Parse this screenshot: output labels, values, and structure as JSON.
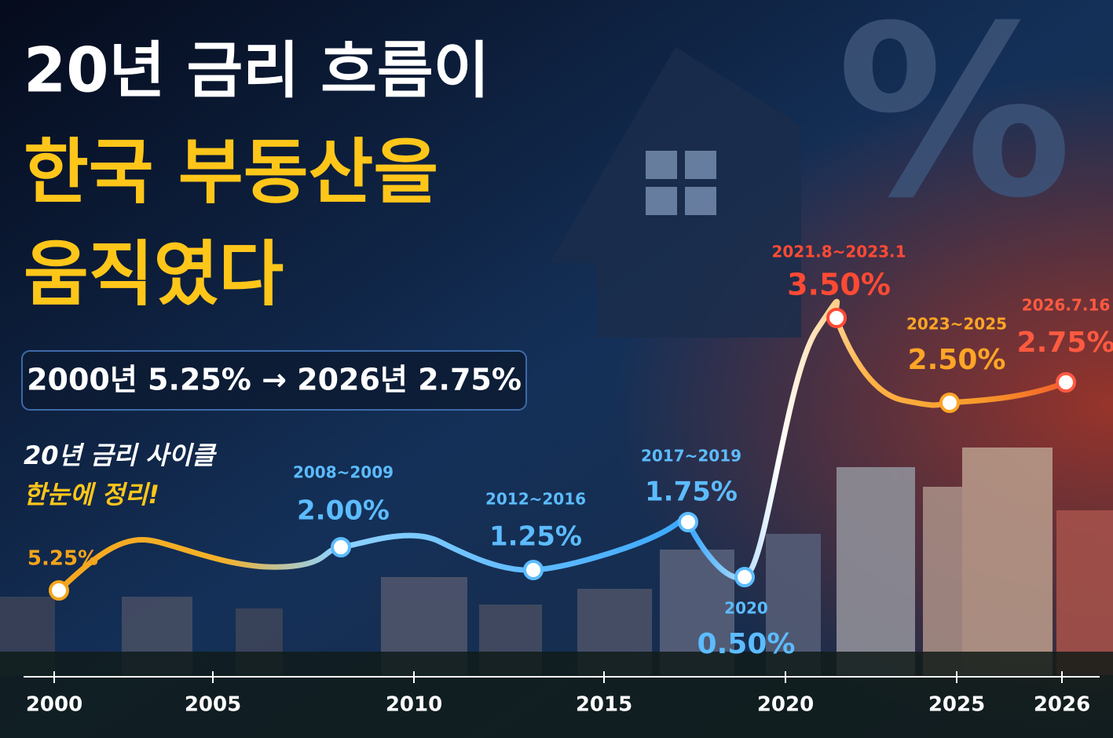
{
  "background_symbol": "%",
  "title": {
    "lines": [
      "20년 금리 흐름이",
      "한국 부동산을",
      "움직였다"
    ]
  },
  "summary": "2000년 5.25% → 2026년 2.75%",
  "subtitle": {
    "lines": [
      "20년 금리 사이클",
      "한눈에 정리!"
    ]
  },
  "points": [
    {
      "rate": "5.25%"
    },
    {
      "period": "2008~2009",
      "rate": "2.00%"
    },
    {
      "period": "2012~2016",
      "rate": "1.25%"
    },
    {
      "period": "2017~2019",
      "rate": "1.75%"
    },
    {
      "period": "2020",
      "rate": "0.50%"
    },
    {
      "period": "2021.8~2023.1",
      "rate": "3.50%"
    },
    {
      "period": "2023~2025",
      "rate": "2.50%"
    },
    {
      "period": "2026.7.16",
      "rate": "2.75%"
    }
  ],
  "axis_labels": [
    "2000",
    "2005",
    "2010",
    "2015",
    "2020",
    "2025",
    "2026"
  ]
}
